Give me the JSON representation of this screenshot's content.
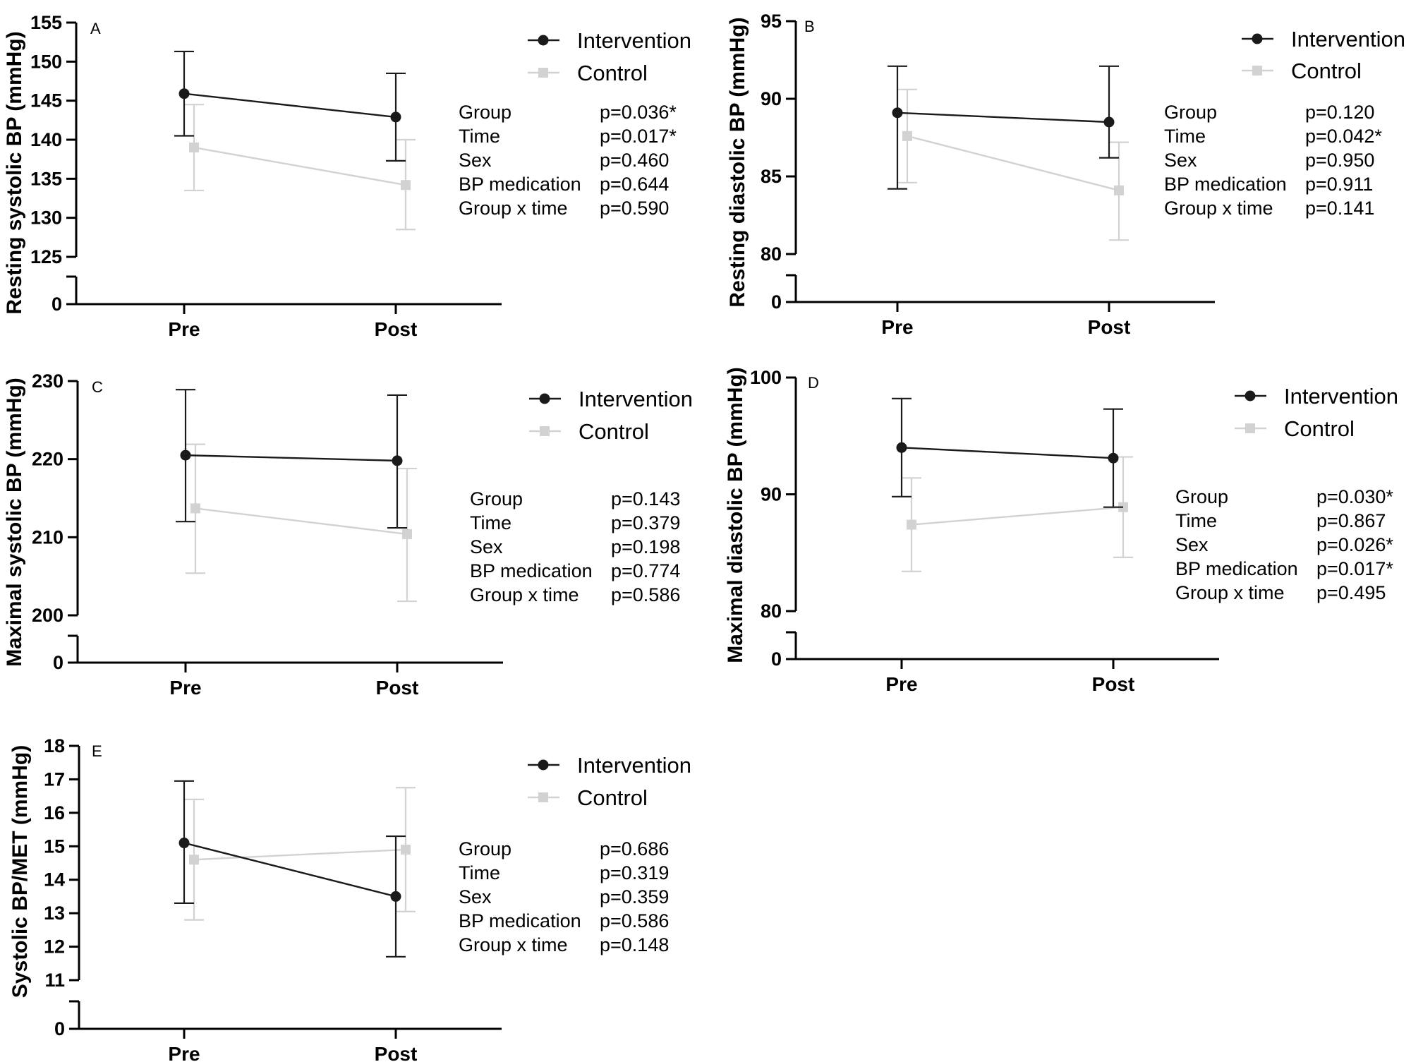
{
  "figure": {
    "categories": [
      "Pre",
      "Post"
    ],
    "legend": {
      "intervention_label": "Intervention",
      "control_label": "Control"
    },
    "colors": {
      "intervention": "#1a1a1a",
      "control": "#d2d2d2",
      "axis": "#000000"
    }
  },
  "chart_data": [
    {
      "panel": "A",
      "type": "line",
      "ylabel": "Resting systolic BP (mmHg)",
      "yticks": [
        125,
        130,
        135,
        140,
        145,
        150,
        155
      ],
      "ylim": [
        125,
        155
      ],
      "axis_break": true,
      "break_zero_label": "0",
      "categories": [
        "Pre",
        "Post"
      ],
      "series": [
        {
          "name": "Intervention",
          "values": [
            145.9,
            142.9
          ],
          "err_high": [
            151.3,
            148.5
          ],
          "err_low": [
            140.5,
            137.3
          ]
        },
        {
          "name": "Control",
          "values": [
            139.0,
            134.2
          ],
          "err_high": [
            144.5,
            140.0
          ],
          "err_low": [
            133.5,
            128.5
          ]
        }
      ],
      "stats": [
        {
          "label": "Group",
          "value": "p=0.036*"
        },
        {
          "label": "Time",
          "value": "p=0.017*"
        },
        {
          "label": "Sex",
          "value": "p=0.460"
        },
        {
          "label": "BP medication",
          "value": "p=0.644"
        },
        {
          "label": "Group x time",
          "value": "p=0.590"
        }
      ]
    },
    {
      "panel": "B",
      "type": "line",
      "ylabel": "Resting diastolic BP (mmHg)",
      "yticks": [
        80,
        85,
        90,
        95
      ],
      "ylim": [
        80,
        95
      ],
      "axis_break": true,
      "break_zero_label": "0",
      "categories": [
        "Pre",
        "Post"
      ],
      "series": [
        {
          "name": "Intervention",
          "values": [
            89.1,
            88.5
          ],
          "err_high": [
            92.1,
            92.1
          ],
          "err_low": [
            84.2,
            86.2
          ]
        },
        {
          "name": "Control",
          "values": [
            87.6,
            84.1
          ],
          "err_high": [
            90.6,
            87.2
          ],
          "err_low": [
            84.6,
            80.9
          ]
        }
      ],
      "stats": [
        {
          "label": "Group",
          "value": "p=0.120"
        },
        {
          "label": "Time",
          "value": "p=0.042*"
        },
        {
          "label": "Sex",
          "value": "p=0.950"
        },
        {
          "label": "BP medication",
          "value": "p=0.911"
        },
        {
          "label": "Group x time",
          "value": "p=0.141"
        }
      ]
    },
    {
      "panel": "C",
      "type": "line",
      "ylabel": "Maximal systolic BP (mmHg)",
      "yticks": [
        200,
        210,
        220,
        230
      ],
      "ylim": [
        200,
        230
      ],
      "axis_break": true,
      "break_zero_label": "0",
      "categories": [
        "Pre",
        "Post"
      ],
      "series": [
        {
          "name": "Intervention",
          "values": [
            220.5,
            219.8
          ],
          "err_high": [
            228.9,
            228.2
          ],
          "err_low": [
            212.0,
            211.2
          ]
        },
        {
          "name": "Control",
          "values": [
            213.7,
            210.4
          ],
          "err_high": [
            221.9,
            218.8
          ],
          "err_low": [
            205.4,
            201.8
          ]
        }
      ],
      "stats": [
        {
          "label": "Group",
          "value": "p=0.143"
        },
        {
          "label": "Time",
          "value": "p=0.379"
        },
        {
          "label": "Sex",
          "value": "p=0.198"
        },
        {
          "label": "BP medication",
          "value": "p=0.774"
        },
        {
          "label": "Group x time",
          "value": "p=0.586"
        }
      ]
    },
    {
      "panel": "D",
      "type": "line",
      "ylabel": "Maximal diastolic BP (mmHg)",
      "yticks": [
        80,
        90,
        100
      ],
      "ylim": [
        80,
        100
      ],
      "axis_break": true,
      "break_zero_label": "0",
      "categories": [
        "Pre",
        "Post"
      ],
      "series": [
        {
          "name": "Intervention",
          "values": [
            94.0,
            93.1
          ],
          "err_high": [
            98.2,
            97.3
          ],
          "err_low": [
            89.8,
            88.9
          ]
        },
        {
          "name": "Control",
          "values": [
            87.4,
            88.9
          ],
          "err_high": [
            91.4,
            93.2
          ],
          "err_low": [
            83.4,
            84.6
          ]
        }
      ],
      "stats": [
        {
          "label": "Group",
          "value": "p=0.030*"
        },
        {
          "label": "Time",
          "value": "p=0.867"
        },
        {
          "label": "Sex",
          "value": "p=0.026*"
        },
        {
          "label": "BP medication",
          "value": "p=0.017*"
        },
        {
          "label": "Group x time",
          "value": "p=0.495"
        }
      ]
    },
    {
      "panel": "E",
      "type": "line",
      "ylabel": "Systolic BP/MET (mmHg)",
      "yticks": [
        11,
        12,
        13,
        14,
        15,
        16,
        17,
        18
      ],
      "ylim": [
        11,
        18
      ],
      "axis_break": true,
      "break_zero_label": "0",
      "categories": [
        "Pre",
        "Post"
      ],
      "series": [
        {
          "name": "Intervention",
          "values": [
            15.1,
            13.5
          ],
          "err_high": [
            16.95,
            15.3
          ],
          "err_low": [
            13.3,
            11.7
          ]
        },
        {
          "name": "Control",
          "values": [
            14.6,
            14.9
          ],
          "err_high": [
            16.4,
            16.75
          ],
          "err_low": [
            12.8,
            13.05
          ]
        }
      ],
      "stats": [
        {
          "label": "Group",
          "value": "p=0.686"
        },
        {
          "label": "Time",
          "value": "p=0.319"
        },
        {
          "label": "Sex",
          "value": "p=0.359"
        },
        {
          "label": "BP medication",
          "value": "p=0.586"
        },
        {
          "label": "Group x time",
          "value": "p=0.148"
        }
      ]
    }
  ]
}
